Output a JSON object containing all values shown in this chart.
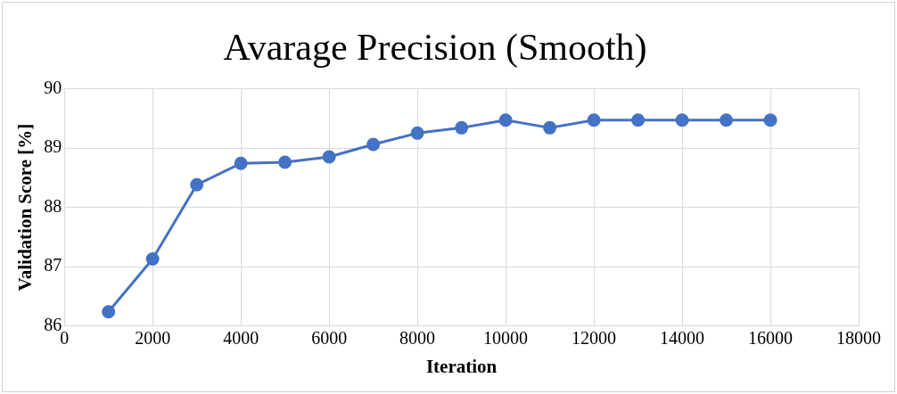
{
  "chart_data": {
    "type": "line",
    "title": "Avarage Precision (Smooth)",
    "xlabel": "Iteration",
    "ylabel": "Validation Score [%]",
    "x": [
      1000,
      2000,
      3000,
      4000,
      5000,
      6000,
      7000,
      8000,
      9000,
      10000,
      11000,
      12000,
      13000,
      14000,
      15000,
      16000
    ],
    "series": [
      {
        "color": "#4472c4",
        "values": [
          86.24,
          87.13,
          88.38,
          88.74,
          88.76,
          88.85,
          89.06,
          89.25,
          89.34,
          89.47,
          89.34,
          89.47,
          89.47,
          89.47,
          89.47,
          89.47
        ]
      }
    ],
    "xlim": [
      0,
      18000
    ],
    "xticks": [
      0,
      2000,
      4000,
      6000,
      8000,
      10000,
      12000,
      14000,
      16000,
      18000
    ],
    "ylim": [
      86,
      90
    ],
    "yticks": [
      86,
      87,
      88,
      89,
      90
    ],
    "grid": true,
    "legend": false,
    "marker": "circle",
    "line_style": "solid"
  }
}
